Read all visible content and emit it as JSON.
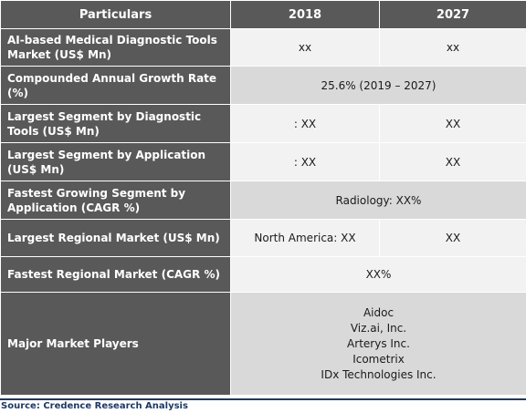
{
  "header": {
    "particulars": "Particulars",
    "year1": "2018",
    "year2": "2027"
  },
  "rows": [
    {
      "label": "AI-based Medical Diagnostic Tools Market (US$ Mn)",
      "v2018": "xx",
      "v2027": "xx"
    },
    {
      "label": "Compounded Annual Growth Rate (%)",
      "merged": "25.6% (2019 – 2027)"
    },
    {
      "label": "Largest Segment by Diagnostic Tools (US$ Mn)",
      "v2018": ": XX",
      "v2027": "XX"
    },
    {
      "label": "Largest Segment by Application (US$ Mn)",
      "v2018": ": XX",
      "v2027": "XX"
    },
    {
      "label": "Fastest Growing Segment by Application (CAGR %)",
      "merged": "Radiology: XX%"
    },
    {
      "label": "Largest Regional Market (US$ Mn)",
      "v2018": "North America: XX",
      "v2027": "XX"
    },
    {
      "label": "Fastest Regional Market (CAGR %)",
      "merged": "XX%"
    },
    {
      "label": "Major Market Players",
      "players": [
        "Aidoc",
        "Viz.ai, Inc.",
        "Arterys Inc.",
        "Icometrix",
        "IDx Technologies Inc."
      ]
    }
  ],
  "source": "Source: Credence Research Analysis"
}
